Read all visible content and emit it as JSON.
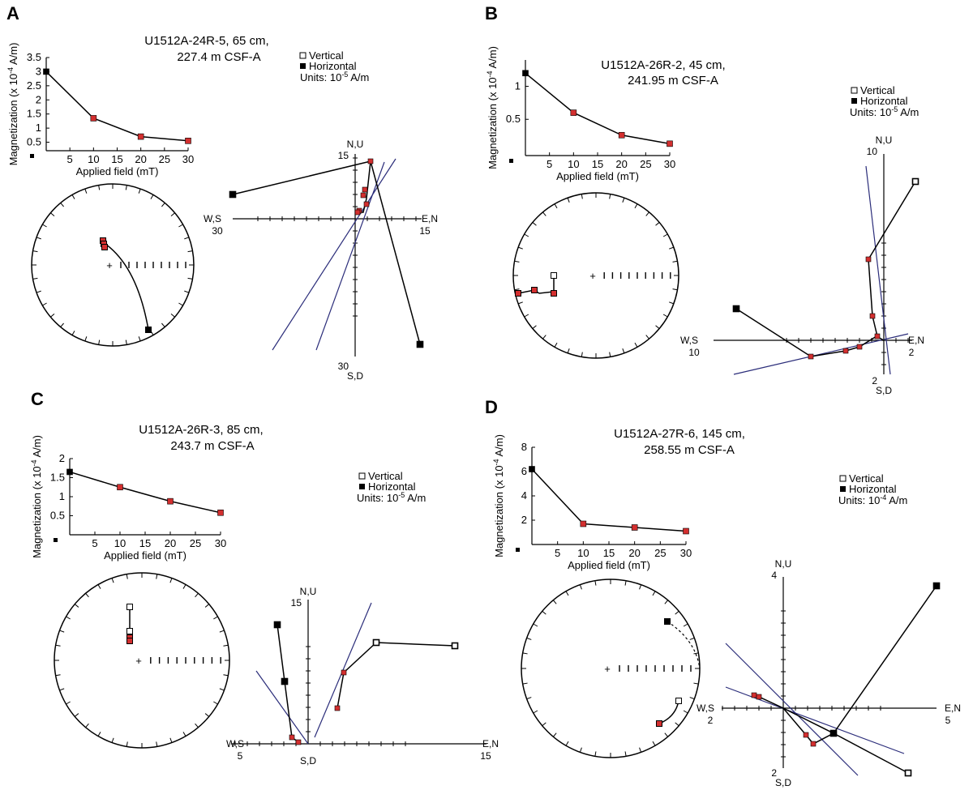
{
  "chart_data": [
    {
      "type": "scatter",
      "panel": "A",
      "title_line1": "U1512A-24R-5, 65 cm,",
      "title_line2": "227.4 m CSF-A",
      "demag": {
        "xlabel": "Applied field (mT)",
        "ylabel": "Magnetization (x 10-4 A/m)",
        "x": [
          0,
          10,
          20,
          30
        ],
        "y": [
          3.0,
          1.35,
          0.7,
          0.55
        ],
        "xticks": [
          "5",
          "10",
          "15",
          "20",
          "25",
          "30"
        ],
        "yticks": [
          "0.5",
          "1",
          "1.5",
          "2",
          "2.5",
          "3",
          "3.5"
        ],
        "xlim": [
          0,
          30
        ],
        "ylim": [
          0.2,
          3.5
        ]
      },
      "legend": {
        "vertical": "Vertical",
        "horizontal": "Horizontal",
        "units": "Units: 10-5 A/m"
      },
      "zijderveld": {
        "west_label": "W,S",
        "east_label": "E,N",
        "north_label": "N,U",
        "south_label": "S,D",
        "west_val": "30",
        "east_val": "15",
        "north_val": "15",
        "south_val": "30",
        "horizontal": [
          [
            1,
            13
          ],
          [
            0.8,
            2.5
          ],
          [
            0.3,
            1
          ],
          [
            0,
            0
          ]
        ],
        "vertical": [
          [
            -28,
            5
          ],
          [
            1,
            13
          ]
        ],
        "vertical_neg": [
          [
            14,
            -28
          ]
        ],
        "red_points": [
          [
            1.6,
            4.5
          ],
          [
            1.2,
            3.5
          ],
          [
            1.8,
            2
          ],
          [
            0.5,
            1.2
          ],
          [
            0.2,
            0.6
          ]
        ]
      },
      "stereonet": {
        "points": [
          [
            -0.12,
            -0.3
          ],
          [
            -0.13,
            -0.28
          ],
          [
            -0.1,
            -0.24
          ],
          [
            0.42,
            0.8
          ]
        ]
      }
    },
    {
      "type": "scatter",
      "panel": "B",
      "title_line1": "U1512A-26R-2, 45 cm,",
      "title_line2": "241.95 m CSF-A",
      "demag": {
        "xlabel": "Applied field (mT)",
        "ylabel": "Magnetization (x 10-4 A/m)",
        "x": [
          0,
          10,
          20,
          30
        ],
        "y": [
          1.2,
          0.6,
          0.26,
          0.13
        ],
        "xticks": [
          "5",
          "10",
          "15",
          "20",
          "25",
          "30"
        ],
        "yticks": [
          "0.5",
          "1"
        ],
        "xlim": [
          0,
          30
        ],
        "ylim": [
          -0.05,
          1.4
        ]
      },
      "legend": {
        "vertical": "Vertical",
        "horizontal": "Horizontal",
        "units": "Units: 10-5 A/m"
      },
      "zijderveld": {
        "west_label": "W,S",
        "east_label": "E,N",
        "north_label": "N,U",
        "south_label": "S,D",
        "west_val": "10",
        "east_val": "2",
        "north_val": "10",
        "south_val": "2"
      },
      "stereonet": {}
    },
    {
      "type": "scatter",
      "panel": "C",
      "title_line1": "U1512A-26R-3, 85 cm,",
      "title_line2": "243.7 m CSF-A",
      "demag": {
        "xlabel": "Applied field (mT)",
        "ylabel": "Magnetization (x 10-4 A/m)",
        "x": [
          0,
          10,
          20,
          30
        ],
        "y": [
          1.65,
          1.25,
          0.88,
          0.58
        ],
        "xticks": [
          "5",
          "10",
          "15",
          "20",
          "25",
          "30"
        ],
        "yticks": [
          "0.5",
          "1",
          "1.5",
          "2"
        ],
        "xlim": [
          0,
          30
        ],
        "ylim": [
          0,
          2
        ]
      },
      "legend": {
        "vertical": "Vertical",
        "horizontal": "Horizontal",
        "units": "Units: 10-5 A/m"
      },
      "zijderveld": {
        "west_label": "W,S",
        "east_label": "E,N",
        "north_label": "N,U",
        "south_label": "S,D",
        "west_val": "5",
        "east_val": "15",
        "north_val": "15"
      },
      "stereonet": {}
    },
    {
      "type": "scatter",
      "panel": "D",
      "title_line1": "U1512A-27R-6, 145 cm,",
      "title_line2": "258.55 m CSF-A",
      "demag": {
        "xlabel": "Applied field (mT)",
        "ylabel": "Magnetization (x 10-4 A/m)",
        "x": [
          0,
          10,
          20,
          30
        ],
        "y": [
          6.2,
          1.7,
          1.4,
          1.1
        ],
        "xticks": [
          "5",
          "10",
          "15",
          "20",
          "25",
          "30"
        ],
        "yticks": [
          "2",
          "4",
          "6",
          "8"
        ],
        "xlim": [
          0,
          30
        ],
        "ylim": [
          0,
          8
        ]
      },
      "legend": {
        "vertical": "Vertical",
        "horizontal": "Horizontal",
        "units": "Units: 10-4 A/m"
      },
      "zijderveld": {
        "west_label": "W,S",
        "east_label": "E,N",
        "north_label": "N,U",
        "south_label": "S,D",
        "west_val": "2",
        "east_val": "5",
        "north_val": "4",
        "south_val": "2"
      },
      "stereonet": {}
    }
  ]
}
